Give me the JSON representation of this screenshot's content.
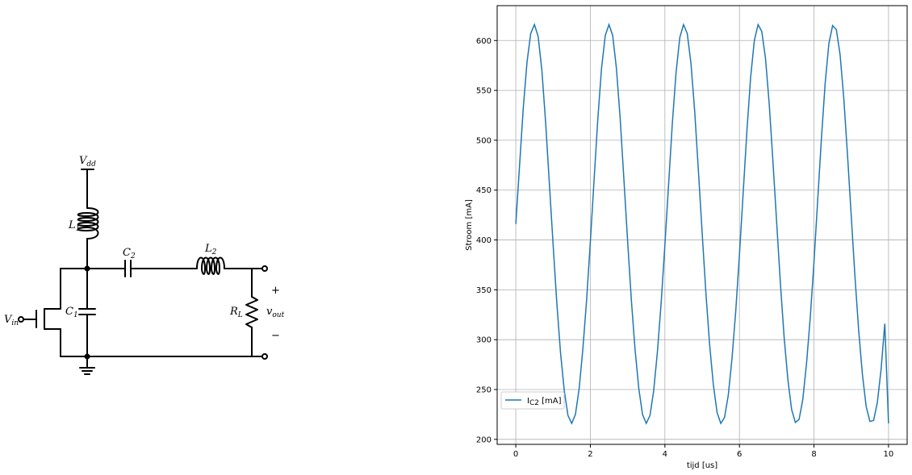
{
  "schematic": {
    "labels": {
      "vdd": "V",
      "vdd_sub": "dd",
      "l1": "L",
      "l1_sub": "1",
      "c2": "C",
      "c2_sub": "2",
      "l2": "L",
      "l2_sub": "2",
      "c1": "C",
      "c1_sub": "1",
      "rl": "R",
      "rl_sub": "L",
      "vin": "V",
      "vin_sub": "in",
      "vout": "v",
      "vout_sub": "out",
      "plus": "+",
      "minus": "−"
    }
  },
  "chart_data": {
    "type": "line",
    "xlabel": "tijd [us]",
    "ylabel": "Stroom [mA]",
    "xlim": [
      -0.5,
      10.5
    ],
    "ylim": [
      195,
      635
    ],
    "xticks": [
      0,
      2,
      4,
      6,
      8,
      10
    ],
    "yticks": [
      200,
      250,
      300,
      350,
      400,
      450,
      500,
      550,
      600
    ],
    "grid": true,
    "legend_position": "lower-left",
    "series": [
      {
        "name": "I",
        "name_sub": "C2",
        "name_suffix": " [mA]",
        "color": "#1f77b4",
        "x": [
          0,
          0.1,
          0.2,
          0.3,
          0.4,
          0.5,
          0.6,
          0.7,
          0.8,
          0.9,
          1.0,
          1.1,
          1.2,
          1.3,
          1.4,
          1.5,
          1.6,
          1.7,
          1.8,
          1.9,
          2.0,
          2.1,
          2.2,
          2.3,
          2.4,
          2.5,
          2.6,
          2.7,
          2.8,
          2.9,
          3.0,
          3.1,
          3.2,
          3.3,
          3.4,
          3.5,
          3.6,
          3.7,
          3.8,
          3.9,
          4.0,
          4.1,
          4.2,
          4.3,
          4.4,
          4.5,
          4.6,
          4.7,
          4.8,
          4.9,
          5.0,
          5.1,
          5.2,
          5.3,
          5.4,
          5.5,
          5.6,
          5.7,
          5.8,
          5.9,
          6.0,
          6.1,
          6.2,
          6.3,
          6.4,
          6.5,
          6.6,
          6.7,
          6.8,
          6.9,
          7.0,
          7.1,
          7.2,
          7.3,
          7.4,
          7.5,
          7.6,
          7.7,
          7.8,
          7.9,
          8.0,
          8.1,
          8.2,
          8.3,
          8.4,
          8.5,
          8.6,
          8.7,
          8.8,
          8.9,
          9.0,
          9.1,
          9.2,
          9.3,
          9.4,
          9.5,
          9.6,
          9.7,
          9.8,
          9.9,
          10.0
        ],
        "values": [
          416,
          474,
          532,
          578,
          607,
          616,
          604,
          570,
          518,
          457,
          396,
          337,
          287,
          249,
          224,
          216,
          225,
          251,
          291,
          340,
          398,
          460,
          521,
          572,
          605,
          616,
          605,
          572,
          522,
          461,
          399,
          340,
          290,
          251,
          225,
          216,
          224,
          249,
          288,
          337,
          395,
          456,
          517,
          568,
          603,
          616,
          607,
          577,
          529,
          469,
          407,
          347,
          295,
          255,
          227,
          216,
          222,
          244,
          281,
          328,
          385,
          447,
          509,
          563,
          600,
          616,
          609,
          582,
          536,
          478,
          417,
          356,
          302,
          260,
          230,
          217,
          220,
          240,
          276,
          322,
          378,
          440,
          502,
          557,
          597,
          615,
          611,
          586,
          542,
          485,
          424,
          363,
          309,
          265,
          233,
          218,
          219,
          237,
          270,
          316,
          216
        ]
      }
    ]
  }
}
